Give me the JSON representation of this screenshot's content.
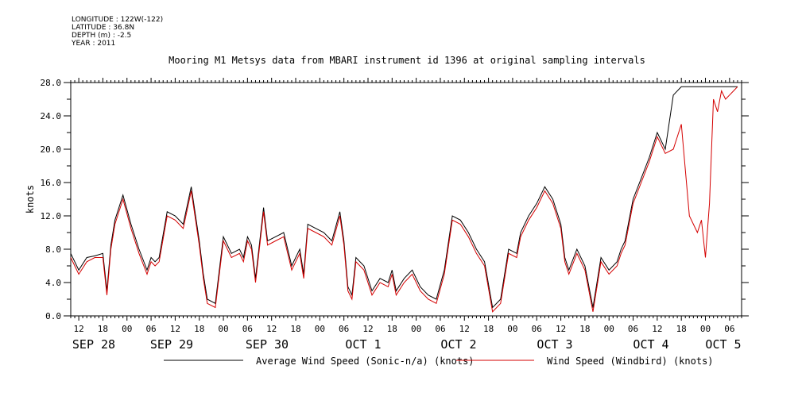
{
  "header": {
    "longitude": "LONGITUDE : 122W(-122)",
    "latitude": "LATITUDE : 36.8N",
    "depth": "DEPTH (m) : -2.5",
    "year": "YEAR : 2011"
  },
  "chart_data": {
    "type": "line",
    "title": "Mooring M1 Metsys data from MBARI instrument id 1396 at original sampling intervals",
    "ylabel": "knots",
    "ylim": [
      0,
      28
    ],
    "y_ticks": [
      "0.0",
      "4.0",
      "8.0",
      "12.0",
      "16.0",
      "20.0",
      "24.0",
      "28.0"
    ],
    "x_range_hours": [
      -2,
      165
    ],
    "hour_ticks": [
      "12",
      "18",
      "00",
      "06",
      "12",
      "18",
      "00",
      "06",
      "12",
      "18",
      "00",
      "06",
      "12",
      "18",
      "00",
      "06",
      "12",
      "18",
      "00",
      "06",
      "12",
      "18",
      "00",
      "06",
      "12",
      "18",
      "00",
      "06"
    ],
    "day_labels": [
      "SEP 28",
      "SEP 29",
      "SEP 30",
      "OCT  1",
      "OCT  2",
      "OCT  3",
      "OCT  4",
      "OCT  5"
    ],
    "grid": false,
    "legend_position": "bottom",
    "series": [
      {
        "name": "Average Wind Speed (Sonic-n/a) (knots)",
        "color": "#000000",
        "x": [
          -2,
          0,
          2,
          4,
          6,
          7,
          8,
          9,
          11,
          13,
          15,
          17,
          18,
          19,
          20,
          22,
          24,
          26,
          28,
          30,
          31,
          32,
          34,
          36,
          38,
          40,
          41,
          42,
          43,
          44,
          46,
          47,
          49,
          51,
          53,
          55,
          56,
          57,
          59,
          61,
          63,
          65,
          66,
          67,
          68,
          69,
          71,
          73,
          75,
          77,
          78,
          79,
          81,
          83,
          85,
          87,
          89,
          91,
          93,
          95,
          97,
          99,
          101,
          103,
          105,
          107,
          109,
          110,
          112,
          114,
          116,
          118,
          120,
          121,
          122,
          124,
          126,
          128,
          130,
          132,
          134,
          135,
          136,
          138,
          140,
          142,
          144,
          146,
          148,
          150,
          152,
          154,
          156,
          157,
          158,
          159,
          160,
          161,
          162,
          163,
          164
        ],
        "y": [
          7.5,
          5.5,
          7.0,
          7.2,
          7.5,
          3.0,
          8.5,
          11.5,
          14.5,
          11.0,
          8.0,
          5.5,
          7.0,
          6.5,
          7.0,
          12.5,
          12.0,
          11.0,
          15.5,
          9.0,
          5.0,
          2.0,
          1.5,
          9.5,
          7.5,
          8.0,
          7.0,
          9.5,
          8.5,
          4.5,
          13.0,
          9.0,
          9.5,
          10.0,
          6.0,
          8.0,
          5.0,
          11.0,
          10.5,
          10.0,
          9.0,
          12.5,
          9.0,
          3.5,
          2.5,
          7.0,
          6.0,
          3.0,
          4.5,
          4.0,
          5.5,
          3.0,
          4.5,
          5.5,
          3.5,
          2.5,
          2.0,
          5.5,
          12.0,
          11.5,
          10.0,
          8.0,
          6.5,
          1.0,
          2.0,
          8.0,
          7.5,
          10.0,
          12.0,
          13.5,
          15.5,
          14.0,
          11.0,
          7.0,
          5.5,
          8.0,
          6.0,
          1.0,
          7.0,
          5.5,
          6.5,
          8.0,
          9.0,
          14.0,
          16.5,
          19.0,
          22.0,
          20.0,
          26.5,
          27.5,
          27.5,
          27.5,
          27.5,
          27.5,
          27.5,
          27.5,
          27.5,
          27.5,
          27.5,
          27.5,
          27.5
        ]
      },
      {
        "name": "Wind Speed (Windbird) (knots)",
        "color": "#d40000",
        "x": [
          -2,
          0,
          2,
          4,
          6,
          7,
          8,
          9,
          11,
          13,
          15,
          17,
          18,
          19,
          20,
          22,
          24,
          26,
          28,
          30,
          31,
          32,
          34,
          36,
          38,
          40,
          41,
          42,
          43,
          44,
          46,
          47,
          49,
          51,
          53,
          55,
          56,
          57,
          59,
          61,
          63,
          65,
          66,
          67,
          68,
          69,
          71,
          73,
          75,
          77,
          78,
          79,
          81,
          83,
          85,
          87,
          89,
          91,
          93,
          95,
          97,
          99,
          101,
          103,
          105,
          107,
          109,
          110,
          112,
          114,
          116,
          118,
          120,
          121,
          122,
          124,
          126,
          128,
          130,
          132,
          134,
          135,
          136,
          138,
          140,
          142,
          144,
          146,
          148,
          150,
          152,
          154,
          155,
          156,
          157,
          158,
          159,
          160,
          161,
          162,
          163,
          164
        ],
        "y": [
          7.0,
          5.0,
          6.5,
          7.0,
          7.0,
          2.5,
          8.0,
          11.0,
          14.0,
          10.5,
          7.5,
          5.0,
          6.5,
          6.0,
          6.5,
          12.0,
          11.5,
          10.5,
          15.0,
          8.5,
          4.5,
          1.5,
          1.0,
          9.0,
          7.0,
          7.5,
          6.5,
          9.0,
          8.0,
          4.0,
          12.5,
          8.5,
          9.0,
          9.5,
          5.5,
          7.5,
          4.5,
          10.5,
          10.0,
          9.5,
          8.5,
          12.0,
          8.5,
          3.0,
          2.0,
          6.5,
          5.5,
          2.5,
          4.0,
          3.5,
          5.0,
          2.5,
          4.0,
          5.0,
          3.0,
          2.0,
          1.5,
          5.0,
          11.5,
          11.0,
          9.5,
          7.5,
          6.0,
          0.5,
          1.5,
          7.5,
          7.0,
          9.5,
          11.5,
          13.0,
          15.0,
          13.5,
          10.5,
          6.5,
          5.0,
          7.5,
          5.5,
          0.5,
          6.5,
          5.0,
          6.0,
          7.5,
          8.5,
          13.5,
          16.0,
          18.5,
          21.5,
          19.5,
          20.0,
          23.0,
          12.0,
          10.0,
          11.5,
          7.0,
          13.5,
          26.0,
          24.5,
          27.0,
          26.0,
          26.5,
          27.0,
          27.5
        ]
      }
    ]
  }
}
